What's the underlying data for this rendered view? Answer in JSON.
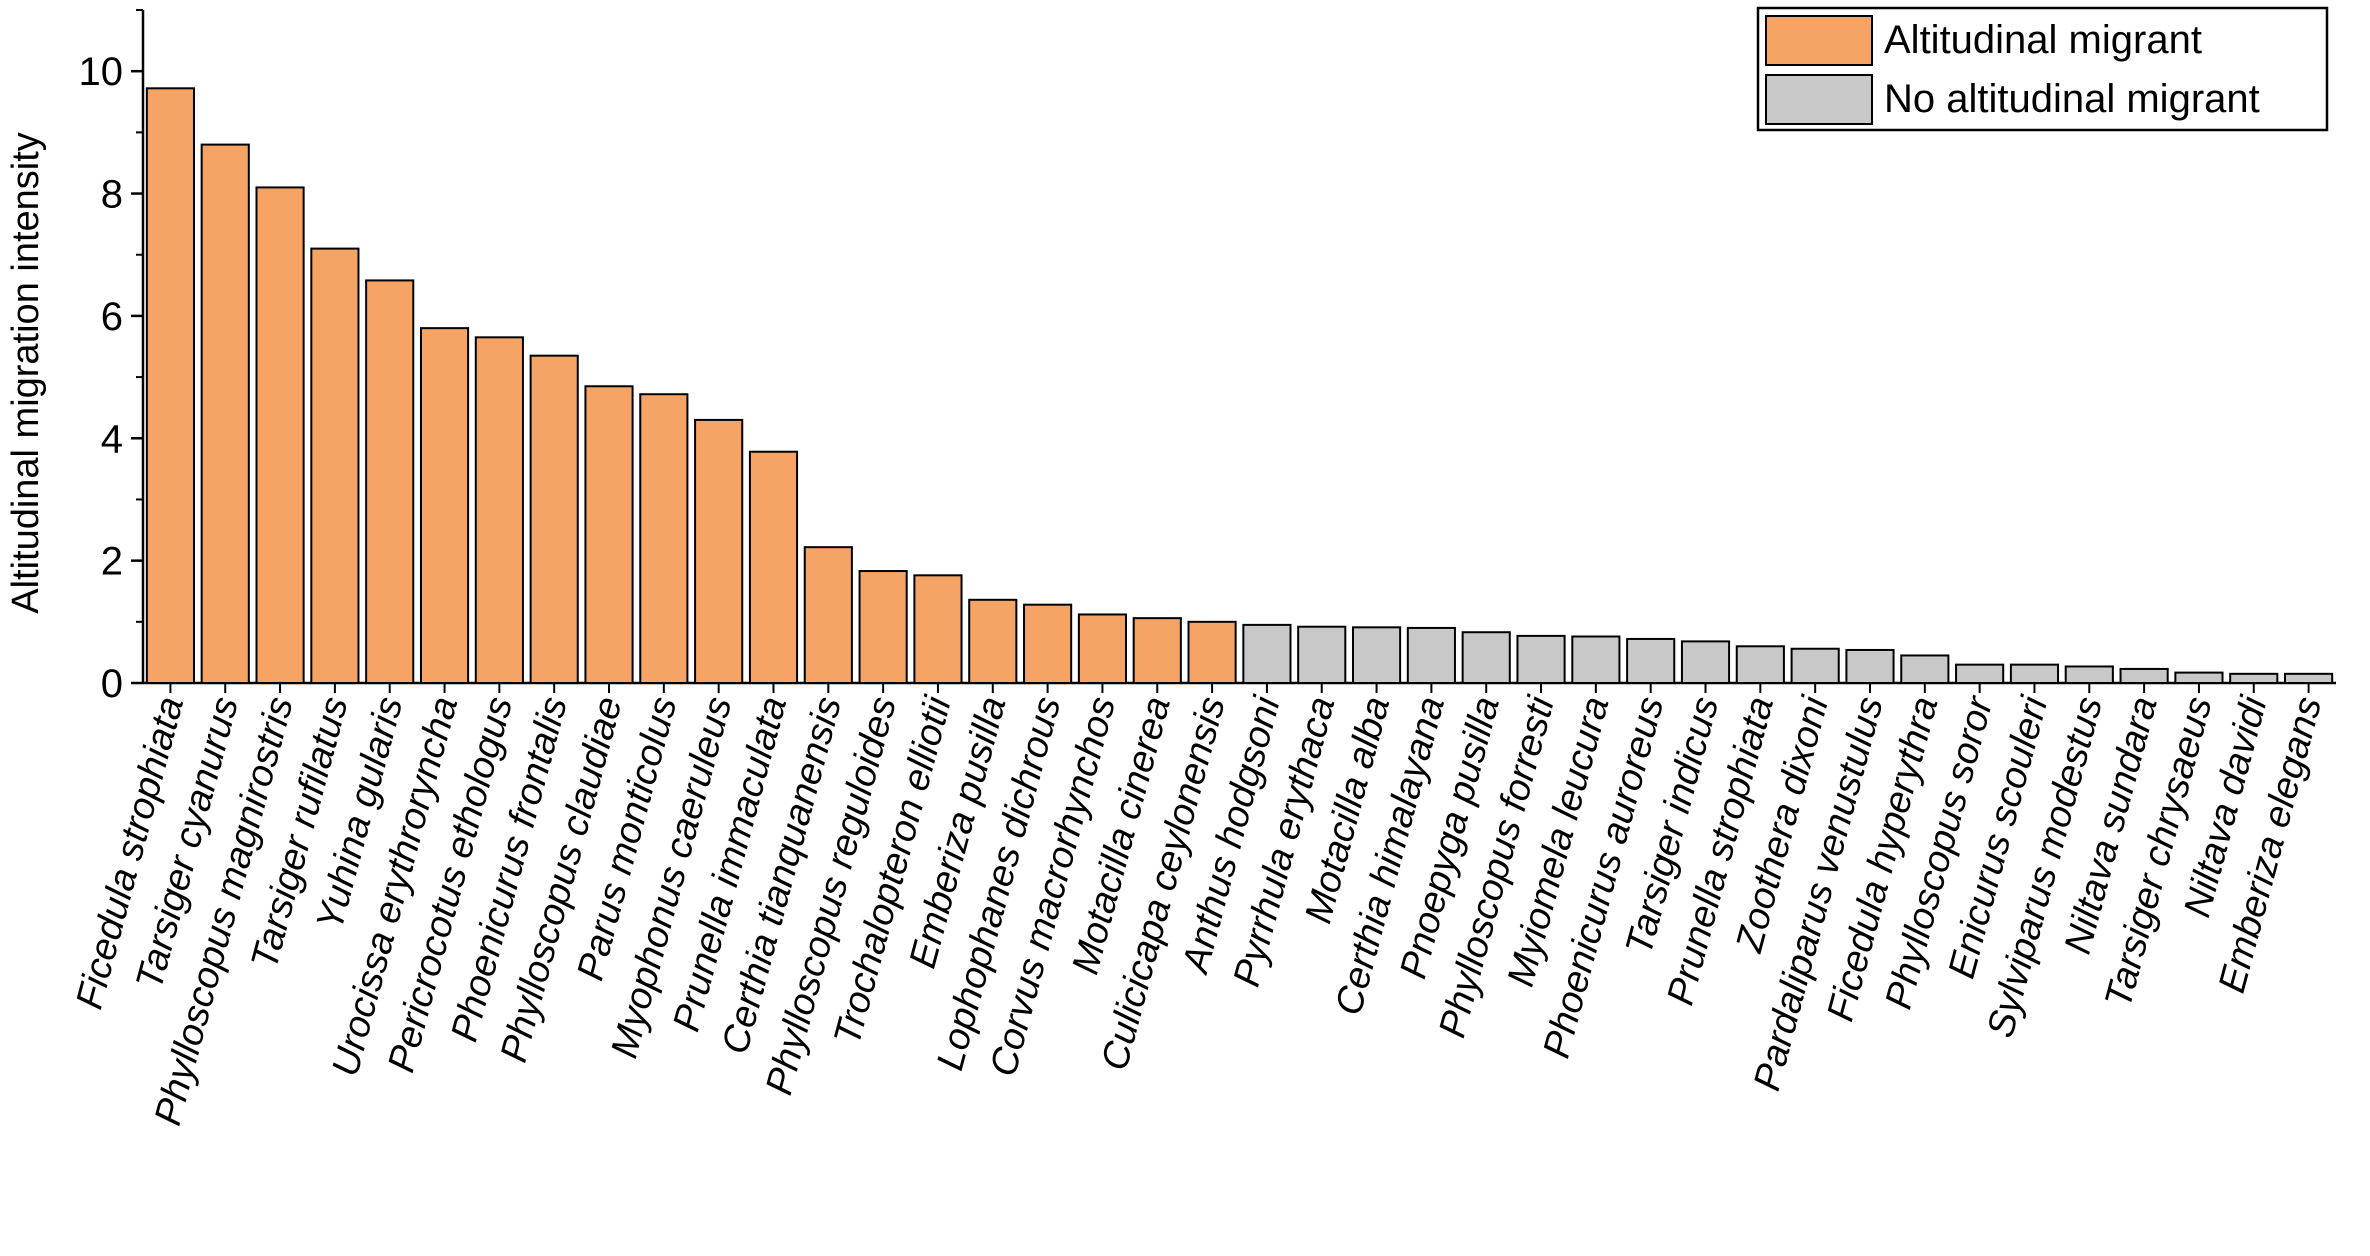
{
  "chart_data": {
    "type": "bar",
    "title": "",
    "xlabel": "",
    "ylabel": "Altitudinal migration intensity",
    "ylim": [
      0,
      11
    ],
    "yticks": [
      0,
      2,
      4,
      6,
      8,
      10
    ],
    "grid": false,
    "legend_position": "top-right",
    "series": [
      {
        "name": "Altitudinal migrant",
        "color": "#F5A466",
        "categories": [
          "Ficedula strophiata",
          "Tarsiger cyanurus",
          "Phylloscopus magnirostris",
          "Tarsiger rufilatus",
          "Yuhina gularis",
          "Urocissa erythroryncha",
          "Pericrocotus ethologus",
          "Phoenicurus frontalis",
          "Phylloscopus claudiae",
          "Parus monticolus",
          "Myophonus caeruleus",
          "Prunella immaculata",
          "Certhia tianquanensis",
          "Phylloscopus reguloides",
          "Trochalopteron elliotii",
          "Emberiza pusilla",
          "Lophophanes dichrous",
          "Corvus macrorhynchos",
          "Motacilla cinerea",
          "Culicicapa ceylonensis"
        ],
        "values": [
          9.72,
          8.8,
          8.1,
          7.1,
          6.58,
          5.8,
          5.65,
          5.35,
          4.85,
          4.72,
          4.3,
          3.78,
          2.22,
          1.83,
          1.76,
          1.36,
          1.28,
          1.12,
          1.06,
          1.0
        ]
      },
      {
        "name": "No altitudinal migrant",
        "color": "#C8C8C8",
        "categories": [
          "Anthus hodgsoni",
          "Pyrrhula erythaca",
          "Motacilla alba",
          "Certhia himalayana",
          "Pnoepyga pusilla",
          "Phylloscopus forresti",
          "Myiomela leucura",
          "Phoenicurus auroreus",
          "Tarsiger indicus",
          "Prunella strophiata",
          "Zoothera dixoni",
          "Pardaliparus venustulus",
          "Ficedula hyperythra",
          "Phylloscopus soror",
          "Enicurus scouleri",
          "Sylviparus modestus",
          "Niltava sundara",
          "Tarsiger chrysaeus",
          "Niltava davidi",
          "Emberiza elegans"
        ],
        "values": [
          0.95,
          0.92,
          0.91,
          0.9,
          0.83,
          0.77,
          0.76,
          0.72,
          0.68,
          0.6,
          0.56,
          0.54,
          0.45,
          0.3,
          0.3,
          0.27,
          0.23,
          0.17,
          0.15,
          0.15
        ]
      }
    ]
  }
}
